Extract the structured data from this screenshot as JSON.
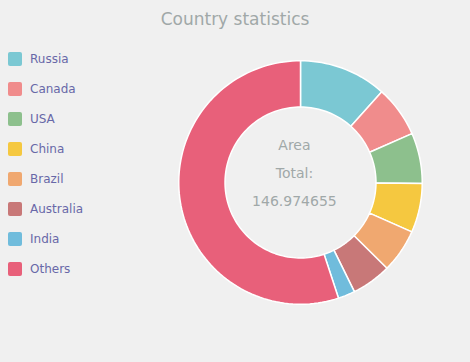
{
  "chart_data": {
    "type": "donut",
    "title": "Country statistics",
    "categories": [
      "Russia",
      "Canada",
      "USA",
      "China",
      "Brazil",
      "Australia",
      "India",
      "Others"
    ],
    "values": [
      17.098242,
      9.98467,
      9.833517,
      9.59696,
      8.515767,
      7.74122,
      3.287263,
      80.917016
    ],
    "colors": [
      "#7BC8D3",
      "#F08C8C",
      "#8DC08D",
      "#F5C840",
      "#F0A870",
      "#C87878",
      "#70BCDC",
      "#E8607A"
    ],
    "annotations": [
      "Area",
      "Total:",
      "146.974655"
    ],
    "legend": "left"
  }
}
